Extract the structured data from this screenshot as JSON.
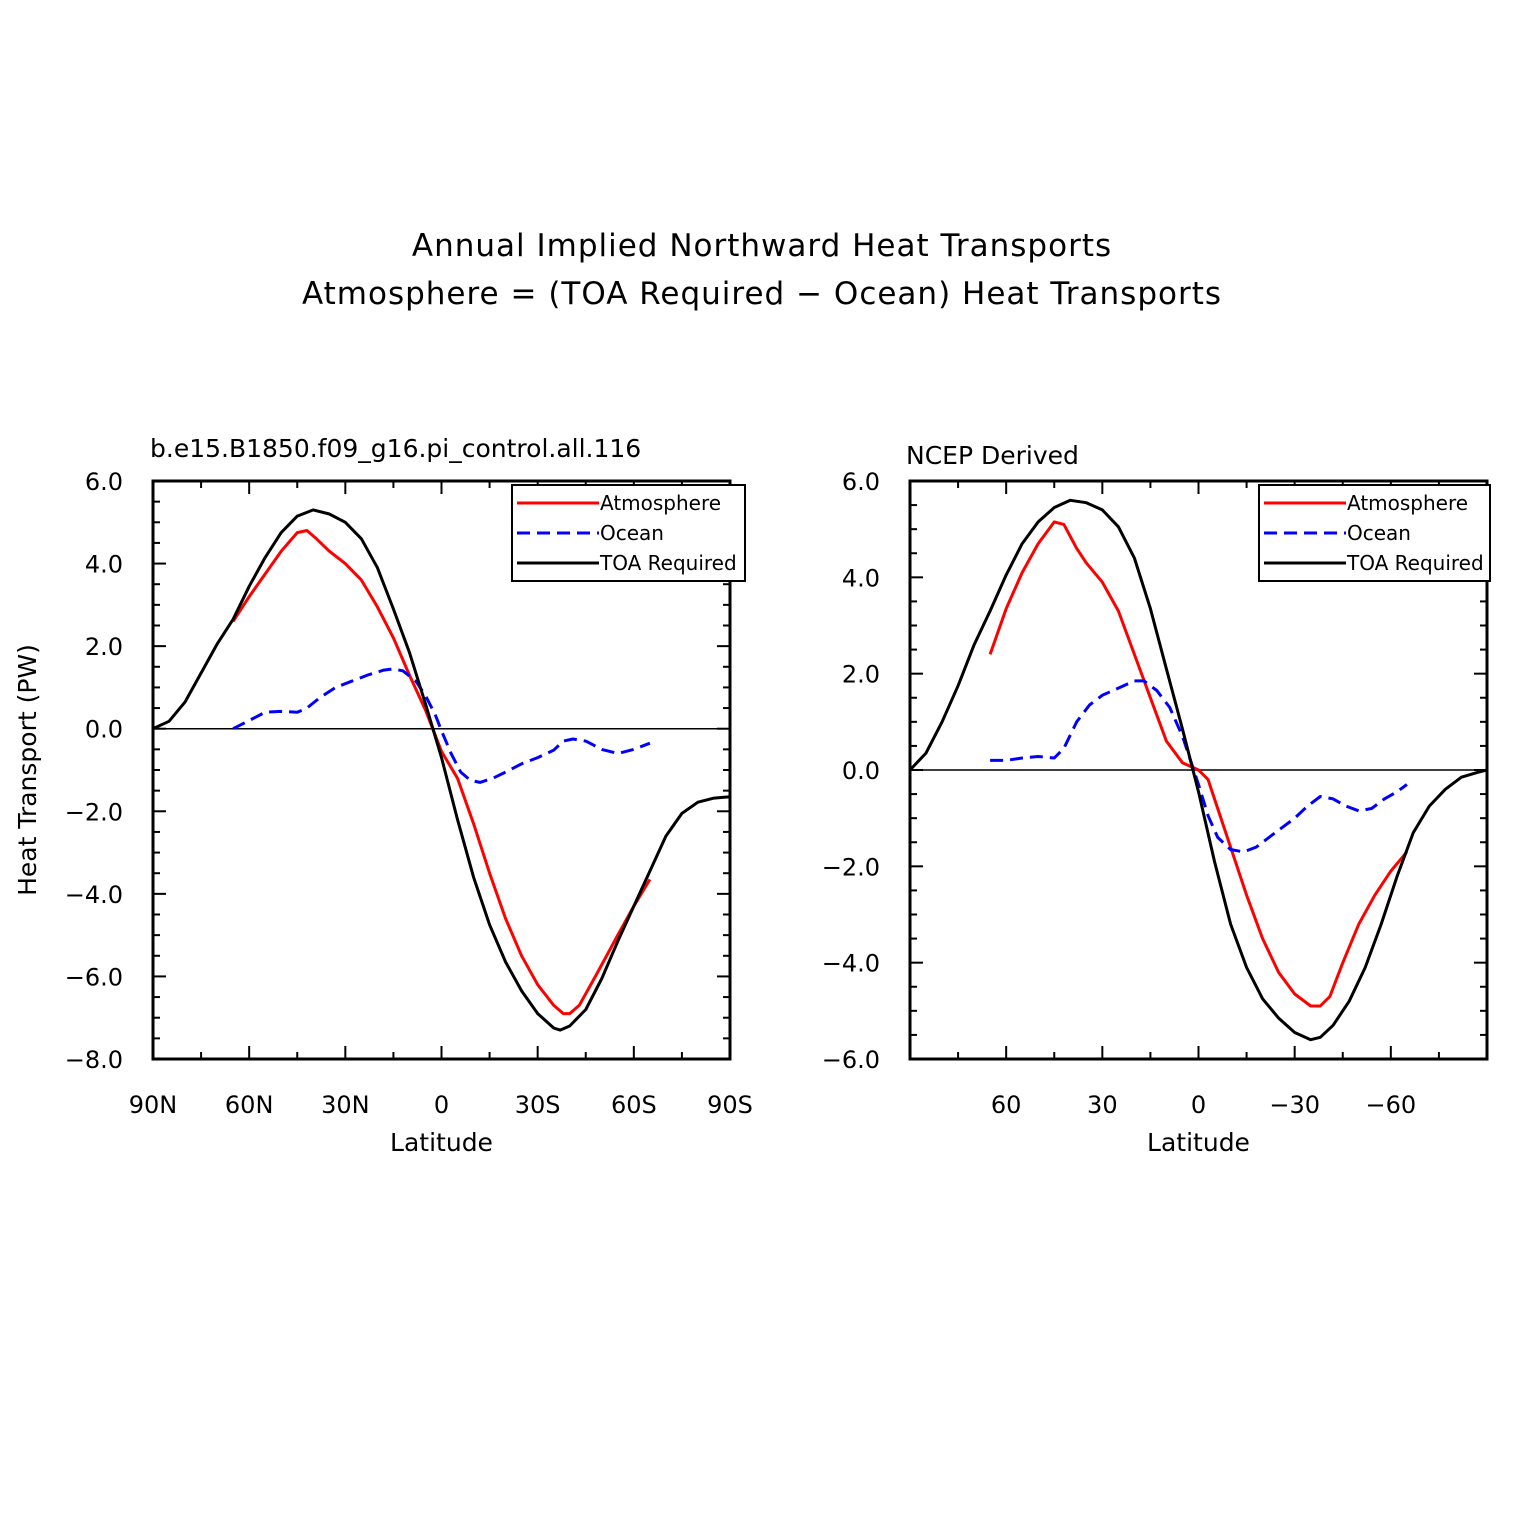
{
  "figure": {
    "title_lines": [
      "Annual Implied Northward Heat Transports",
      "Atmosphere = (TOA Required − Ocean) Heat Transports"
    ]
  },
  "chart_data": [
    {
      "type": "line",
      "title": "b.e15.B1850.f09_g16.pi_control.all.116",
      "xlabel": "Latitude",
      "ylabel": "Heat Transport (PW)",
      "xlim": [
        90,
        -90
      ],
      "ylim": [
        -8.0,
        6.0
      ],
      "xticks": [
        90,
        60,
        30,
        0,
        -30,
        -60,
        -90
      ],
      "xtick_labels": [
        "90N",
        "60N",
        "30N",
        "0",
        "30S",
        "60S",
        "90S"
      ],
      "yticks": [
        -8,
        -6,
        -4,
        -2,
        0,
        2,
        4,
        6
      ],
      "ytick_labels": [
        "−8.0",
        "−6.0",
        "−4.0",
        "−2.0",
        "0.0",
        "2.0",
        "4.0",
        "6.0"
      ],
      "legend_position": "top-right",
      "series": [
        {
          "name": "Atmosphere",
          "color": "#ff0000",
          "dash": "solid",
          "points": [
            [
              65,
              2.6
            ],
            [
              60,
              3.2
            ],
            [
              55,
              3.75
            ],
            [
              50,
              4.3
            ],
            [
              45,
              4.75
            ],
            [
              42,
              4.8
            ],
            [
              39,
              4.6
            ],
            [
              35,
              4.3
            ],
            [
              30,
              4.0
            ],
            [
              25,
              3.6
            ],
            [
              20,
              2.95
            ],
            [
              15,
              2.2
            ],
            [
              10,
              1.3
            ],
            [
              5,
              0.45
            ],
            [
              0,
              -0.55
            ],
            [
              -5,
              -1.2
            ],
            [
              -10,
              -2.3
            ],
            [
              -15,
              -3.5
            ],
            [
              -20,
              -4.6
            ],
            [
              -25,
              -5.5
            ],
            [
              -30,
              -6.2
            ],
            [
              -35,
              -6.7
            ],
            [
              -38,
              -6.9
            ],
            [
              -40,
              -6.9
            ],
            [
              -43,
              -6.7
            ],
            [
              -48,
              -6.0
            ],
            [
              -55,
              -5.0
            ],
            [
              -60,
              -4.3
            ],
            [
              -65,
              -3.65
            ]
          ]
        },
        {
          "name": "Ocean",
          "color": "#0000ff",
          "dash": "dashed",
          "points": [
            [
              65,
              0.0
            ],
            [
              60,
              0.2
            ],
            [
              55,
              0.4
            ],
            [
              50,
              0.42
            ],
            [
              45,
              0.4
            ],
            [
              42,
              0.5
            ],
            [
              38,
              0.75
            ],
            [
              33,
              1.0
            ],
            [
              28,
              1.15
            ],
            [
              23,
              1.3
            ],
            [
              18,
              1.42
            ],
            [
              15,
              1.45
            ],
            [
              12,
              1.4
            ],
            [
              8,
              1.15
            ],
            [
              5,
              0.8
            ],
            [
              2,
              0.35
            ],
            [
              0,
              -0.05
            ],
            [
              -3,
              -0.6
            ],
            [
              -6,
              -1.05
            ],
            [
              -9,
              -1.25
            ],
            [
              -12,
              -1.3
            ],
            [
              -16,
              -1.2
            ],
            [
              -20,
              -1.05
            ],
            [
              -25,
              -0.85
            ],
            [
              -30,
              -0.7
            ],
            [
              -35,
              -0.52
            ],
            [
              -38,
              -0.3
            ],
            [
              -41,
              -0.25
            ],
            [
              -45,
              -0.3
            ],
            [
              -50,
              -0.5
            ],
            [
              -55,
              -0.6
            ],
            [
              -60,
              -0.5
            ],
            [
              -65,
              -0.35
            ]
          ]
        },
        {
          "name": "TOA Required",
          "color": "#000000",
          "dash": "solid",
          "points": [
            [
              90,
              0.0
            ],
            [
              85,
              0.18
            ],
            [
              80,
              0.65
            ],
            [
              75,
              1.35
            ],
            [
              70,
              2.05
            ],
            [
              65,
              2.65
            ],
            [
              60,
              3.45
            ],
            [
              55,
              4.15
            ],
            [
              50,
              4.75
            ],
            [
              45,
              5.15
            ],
            [
              40,
              5.3
            ],
            [
              35,
              5.2
            ],
            [
              30,
              5.0
            ],
            [
              25,
              4.6
            ],
            [
              20,
              3.9
            ],
            [
              15,
              2.9
            ],
            [
              10,
              1.85
            ],
            [
              5,
              0.6
            ],
            [
              0,
              -0.7
            ],
            [
              -5,
              -2.2
            ],
            [
              -10,
              -3.6
            ],
            [
              -15,
              -4.75
            ],
            [
              -20,
              -5.65
            ],
            [
              -25,
              -6.35
            ],
            [
              -30,
              -6.9
            ],
            [
              -35,
              -7.25
            ],
            [
              -37,
              -7.3
            ],
            [
              -40,
              -7.2
            ],
            [
              -45,
              -6.8
            ],
            [
              -50,
              -6.05
            ],
            [
              -55,
              -5.15
            ],
            [
              -60,
              -4.3
            ],
            [
              -65,
              -3.45
            ],
            [
              -70,
              -2.6
            ],
            [
              -75,
              -2.05
            ],
            [
              -80,
              -1.78
            ],
            [
              -85,
              -1.68
            ],
            [
              -90,
              -1.65
            ]
          ]
        }
      ]
    },
    {
      "type": "line",
      "title": "NCEP Derived",
      "xlabel": "Latitude",
      "ylabel": "",
      "xlim": [
        90,
        -90
      ],
      "ylim": [
        -6.0,
        6.0
      ],
      "xticks": [
        60,
        30,
        0,
        -30,
        -60
      ],
      "xtick_labels": [
        "60",
        "30",
        "0",
        "−30",
        "−60"
      ],
      "yticks": [
        -6,
        -4,
        -2,
        0,
        2,
        4,
        6
      ],
      "ytick_labels": [
        "−6.0",
        "−4.0",
        "−2.0",
        "0.0",
        "2.0",
        "4.0",
        "6.0"
      ],
      "legend_position": "top-right",
      "series": [
        {
          "name": "Atmosphere",
          "color": "#ff0000",
          "dash": "solid",
          "points": [
            [
              65,
              2.4
            ],
            [
              60,
              3.35
            ],
            [
              55,
              4.1
            ],
            [
              50,
              4.7
            ],
            [
              45,
              5.15
            ],
            [
              42,
              5.1
            ],
            [
              38,
              4.6
            ],
            [
              35,
              4.3
            ],
            [
              30,
              3.9
            ],
            [
              25,
              3.3
            ],
            [
              20,
              2.4
            ],
            [
              15,
              1.5
            ],
            [
              10,
              0.6
            ],
            [
              5,
              0.15
            ],
            [
              0,
              0.0
            ],
            [
              -3,
              -0.2
            ],
            [
              -6,
              -0.8
            ],
            [
              -10,
              -1.6
            ],
            [
              -15,
              -2.6
            ],
            [
              -20,
              -3.5
            ],
            [
              -25,
              -4.2
            ],
            [
              -30,
              -4.65
            ],
            [
              -35,
              -4.9
            ],
            [
              -38,
              -4.9
            ],
            [
              -41,
              -4.7
            ],
            [
              -45,
              -4.0
            ],
            [
              -50,
              -3.2
            ],
            [
              -55,
              -2.6
            ],
            [
              -60,
              -2.1
            ],
            [
              -65,
              -1.7
            ]
          ]
        },
        {
          "name": "Ocean",
          "color": "#0000ff",
          "dash": "dashed",
          "points": [
            [
              65,
              0.2
            ],
            [
              60,
              0.2
            ],
            [
              55,
              0.25
            ],
            [
              50,
              0.28
            ],
            [
              45,
              0.25
            ],
            [
              42,
              0.45
            ],
            [
              38,
              1.0
            ],
            [
              34,
              1.35
            ],
            [
              30,
              1.55
            ],
            [
              25,
              1.7
            ],
            [
              20,
              1.85
            ],
            [
              17,
              1.85
            ],
            [
              13,
              1.65
            ],
            [
              9,
              1.3
            ],
            [
              5,
              0.7
            ],
            [
              2,
              0.1
            ],
            [
              0,
              -0.3
            ],
            [
              -3,
              -0.95
            ],
            [
              -6,
              -1.4
            ],
            [
              -10,
              -1.65
            ],
            [
              -14,
              -1.7
            ],
            [
              -18,
              -1.6
            ],
            [
              -22,
              -1.4
            ],
            [
              -26,
              -1.2
            ],
            [
              -30,
              -1.0
            ],
            [
              -34,
              -0.75
            ],
            [
              -38,
              -0.55
            ],
            [
              -42,
              -0.6
            ],
            [
              -46,
              -0.75
            ],
            [
              -50,
              -0.85
            ],
            [
              -54,
              -0.8
            ],
            [
              -58,
              -0.6
            ],
            [
              -62,
              -0.45
            ],
            [
              -65,
              -0.3
            ]
          ]
        },
        {
          "name": "TOA Required",
          "color": "#000000",
          "dash": "solid",
          "points": [
            [
              90,
              0.0
            ],
            [
              85,
              0.35
            ],
            [
              80,
              1.0
            ],
            [
              75,
              1.75
            ],
            [
              70,
              2.6
            ],
            [
              65,
              3.3
            ],
            [
              60,
              4.05
            ],
            [
              55,
              4.7
            ],
            [
              50,
              5.15
            ],
            [
              45,
              5.45
            ],
            [
              40,
              5.6
            ],
            [
              35,
              5.55
            ],
            [
              30,
              5.4
            ],
            [
              25,
              5.05
            ],
            [
              20,
              4.4
            ],
            [
              15,
              3.35
            ],
            [
              10,
              2.1
            ],
            [
              5,
              0.85
            ],
            [
              0,
              -0.45
            ],
            [
              -5,
              -1.9
            ],
            [
              -10,
              -3.2
            ],
            [
              -15,
              -4.1
            ],
            [
              -20,
              -4.75
            ],
            [
              -25,
              -5.15
            ],
            [
              -30,
              -5.45
            ],
            [
              -35,
              -5.6
            ],
            [
              -38,
              -5.55
            ],
            [
              -42,
              -5.3
            ],
            [
              -47,
              -4.8
            ],
            [
              -52,
              -4.1
            ],
            [
              -57,
              -3.2
            ],
            [
              -62,
              -2.2
            ],
            [
              -67,
              -1.3
            ],
            [
              -72,
              -0.75
            ],
            [
              -77,
              -0.4
            ],
            [
              -82,
              -0.15
            ],
            [
              -87,
              -0.05
            ],
            [
              -90,
              0.0
            ]
          ]
        }
      ]
    }
  ]
}
